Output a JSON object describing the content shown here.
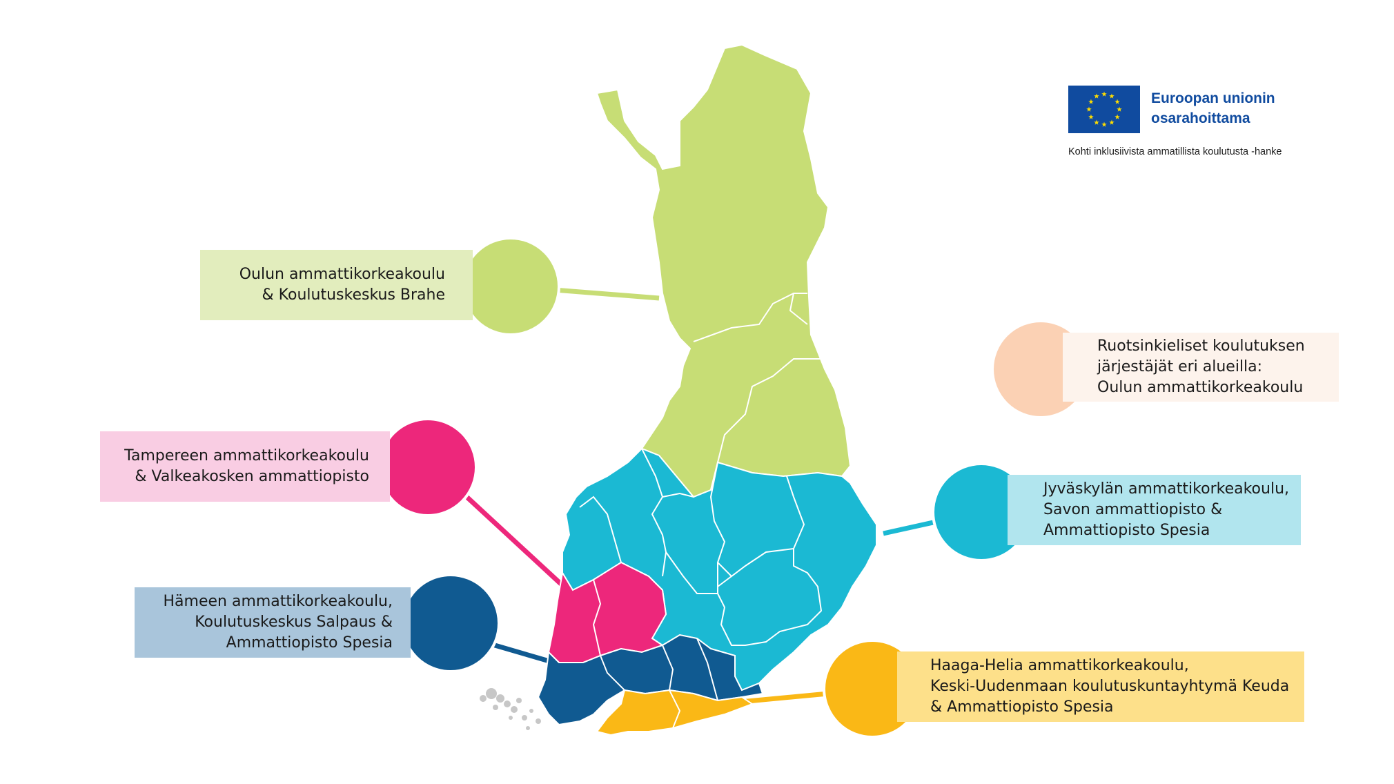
{
  "regions": [
    {
      "id": "north",
      "lines": [
        "Oulun ammattikorkeakoulu",
        "& Koulutuskeskus Brahe"
      ],
      "color": "#c7dd75",
      "box_color": "#e2edbd"
    },
    {
      "id": "swedish",
      "lines": [
        "Ruotsinkieliset koulutuksen",
        "järjestäjät eri alueilla:",
        "Oulun ammattikorkeakoulu"
      ],
      "color": "#fbd1b4",
      "box_color": "#fdf3ec"
    },
    {
      "id": "tampere",
      "lines": [
        "Tampereen ammattikorkeakoulu",
        "& Valkeakosken ammattiopisto"
      ],
      "color": "#ed277b",
      "box_color": "#f9cde3"
    },
    {
      "id": "central",
      "lines": [
        "Jyväskylän ammattikorkeakoulu,",
        "Savon ammattiopisto &",
        "Ammattiopisto Spesia"
      ],
      "color": "#1bb9d3",
      "box_color": "#b1e5ee"
    },
    {
      "id": "hame",
      "lines": [
        "Hämeen ammattikorkeakoulu,",
        "Koulutuskeskus Salpaus &",
        "Ammattiopisto Spesia"
      ],
      "color": "#105a91",
      "box_color": "#a9c5db"
    },
    {
      "id": "uusimaa",
      "lines": [
        "Haaga-Helia ammattikorkeakoulu,",
        "Keski-Uudenmaan koulutuskuntayhtymä Keuda",
        "& Ammattiopisto Spesia"
      ],
      "color": "#fab816",
      "box_color": "#fde08a"
    }
  ],
  "eu": {
    "title_lines": [
      "Euroopan unionin",
      "osarahoittama"
    ],
    "project": "Kohti inklusiivista ammatillista koulutusta -hanke",
    "flag_color": "#104b9f",
    "star_color": "#ffdd00"
  }
}
